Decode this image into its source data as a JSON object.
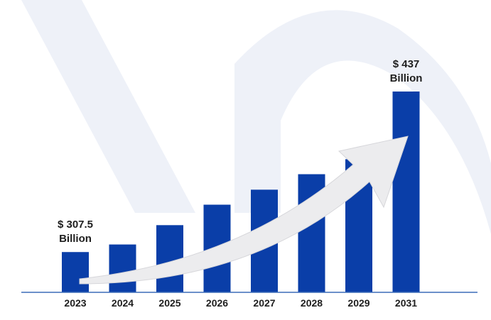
{
  "chart_data": {
    "type": "bar",
    "categories": [
      "2023",
      "2024",
      "2025",
      "2026",
      "2027",
      "2028",
      "2029",
      "2031"
    ],
    "values": [
      307.5,
      313.6,
      329.2,
      345.7,
      357.8,
      370.3,
      382.4,
      437
    ],
    "ylim": [
      275,
      445
    ],
    "grid": false,
    "legend": "none",
    "annotations": [
      {
        "category": "2023",
        "line1": "$ 307.5",
        "line2": "Billion"
      },
      {
        "category": "2031",
        "line1": "$ 437",
        "line2": "Billion"
      }
    ],
    "colors": {
      "bar": "#0a3ea8",
      "axis": "#3c6bb8",
      "text": "#1e1e1e",
      "arrow": "#ececee",
      "watermark": "#eef1f8"
    }
  }
}
